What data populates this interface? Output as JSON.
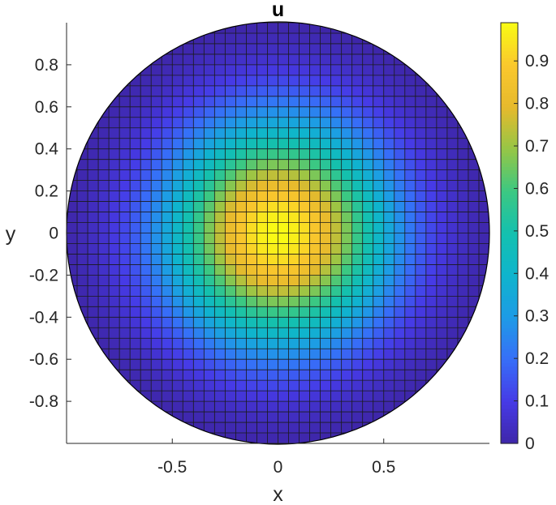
{
  "chart_data": {
    "type": "heatmap",
    "title": "u",
    "xlabel": "x",
    "ylabel": "y",
    "xlim": [
      -1,
      1
    ],
    "ylim": [
      -1,
      1
    ],
    "domain": "unit disk",
    "mesh": "uniform quadrilateral grid, 40 x 40 cells",
    "field": "radially symmetric, maximum ≈ 0.99 at center, decays to 0 on the unit circle",
    "peak_value": 0.99,
    "xticks": [
      -0.5,
      0,
      0.5
    ],
    "xtick_labels": [
      "-0.5",
      "0",
      "0.5"
    ],
    "yticks": [
      0.8,
      0.6,
      0.4,
      0.2,
      0,
      -0.2,
      -0.4,
      -0.6,
      -0.8
    ],
    "ytick_labels": [
      "0.8",
      "0.6",
      "0.4",
      "0.2",
      "0",
      "-0.2",
      "-0.4",
      "-0.6",
      "-0.8"
    ],
    "colorbar": {
      "colormap": "parula",
      "range": [
        0,
        0.99
      ],
      "ticks": [
        0,
        0.1,
        0.2,
        0.3,
        0.4,
        0.5,
        0.6,
        0.7,
        0.8,
        0.9
      ],
      "tick_labels": [
        "0",
        "0.1",
        "0.2",
        "0.3",
        "0.4",
        "0.5",
        "0.6",
        "0.7",
        "0.8",
        "0.9"
      ]
    },
    "grid": false
  }
}
